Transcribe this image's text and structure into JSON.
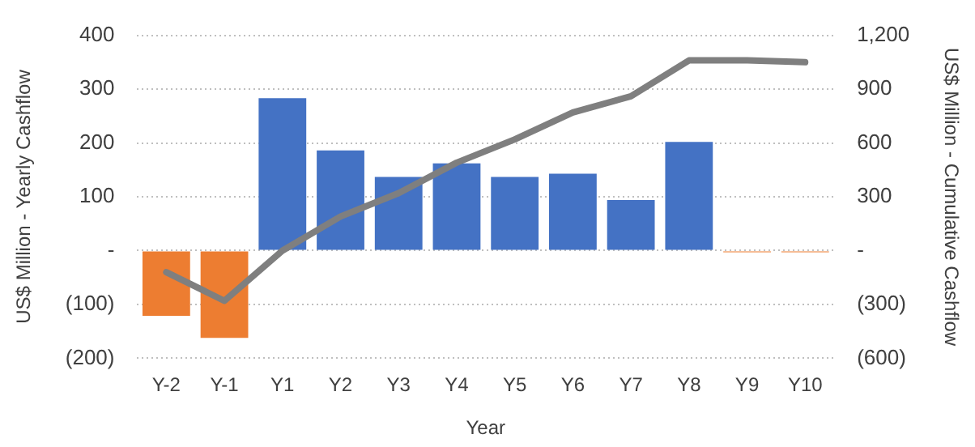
{
  "chart_data": {
    "type": "bar",
    "xlabel": "Year",
    "ylabel": "US$ Million - Yearly Cashflow",
    "y2label": "US$ Million - Cumulative Cashflow",
    "categories": [
      "Y-2",
      "Y-1",
      "Y1",
      "Y2",
      "Y3",
      "Y4",
      "Y5",
      "Y6",
      "Y7",
      "Y8",
      "Y9",
      "Y10"
    ],
    "series": [
      {
        "colors": [
          "#ed7d31",
          "#ed7d31",
          "#4472c4",
          "#4472c4",
          "#4472c4",
          "#4472c4",
          "#4472c4",
          "#4472c4",
          "#4472c4",
          "#4472c4",
          "#ed7d31",
          "#ed7d31"
        ],
        "values": [
          -121,
          -162,
          283,
          186,
          137,
          162,
          137,
          143,
          94,
          202,
          -3,
          -3
        ]
      },
      {
        "type": "line",
        "axis": "y2",
        "color": "#7f7f7f",
        "values": [
          -120,
          -280,
          0,
          190,
          320,
          490,
          620,
          770,
          860,
          1060,
          1060,
          1050
        ]
      }
    ],
    "ylim": [
      -200,
      400
    ],
    "yticks": [
      {
        "value": -200,
        "label": "(200)"
      },
      {
        "value": -100,
        "label": "(100)"
      },
      {
        "value": 0,
        "label": "-"
      },
      100,
      200,
      300,
      400
    ],
    "y2lim": [
      -600,
      1200
    ],
    "y2ticks": [
      {
        "value": -600,
        "label": "(600)"
      },
      {
        "value": -300,
        "label": "(300)"
      },
      {
        "value": 0,
        "label": "-"
      },
      300,
      600,
      900,
      {
        "value": 1200,
        "label": "1,200"
      }
    ],
    "grid": "y",
    "legend": false,
    "marker": "none"
  }
}
